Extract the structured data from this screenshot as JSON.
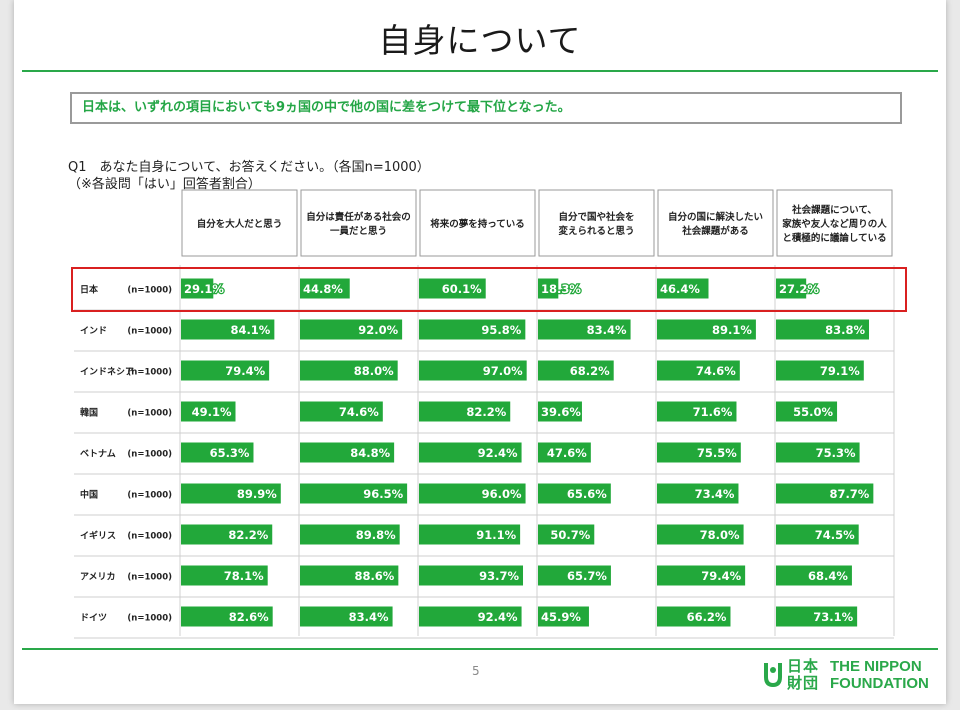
{
  "title": "自身について",
  "summary": "日本は、いずれの項目においても9ヵ国の中で他の国に差をつけて最下位となった。",
  "question": {
    "line1": "Q1　あなた自身について、お答えください。（各国n=1000）",
    "line2": "（※各設問「はい」回答者割合）"
  },
  "page_number": "5",
  "logo": {
    "jp_line1": "日本",
    "jp_line2": "財団",
    "en_line1": "THE NIPPON",
    "en_line2": "FOUNDATION"
  },
  "colors": {
    "bar": "#22a83a",
    "accent": "#2aa84a",
    "highlight_border": "#d92020",
    "bar_label": "#ffffff"
  },
  "chart_data": {
    "type": "bar",
    "orientation": "horizontal",
    "xlim": [
      0,
      100
    ],
    "value_format": "percent",
    "columns": [
      [
        "自分を大人だと思う"
      ],
      [
        "自分は責任がある社会の",
        "一員だと思う"
      ],
      [
        "将来の夢を持っている"
      ],
      [
        "自分で国や社会を",
        "変えられると思う"
      ],
      [
        "自分の国に解決したい",
        "社会課題がある"
      ],
      [
        "社会課題について、",
        "家族や友人など周りの人",
        "と積極的に議論している"
      ]
    ],
    "series": [
      {
        "name": "日本",
        "n": "(n=1000)",
        "highlight": true,
        "values": [
          29.1,
          44.8,
          60.1,
          18.3,
          46.4,
          27.2
        ]
      },
      {
        "name": "インド",
        "n": "(n=1000)",
        "values": [
          84.1,
          92.0,
          95.8,
          83.4,
          89.1,
          83.8
        ]
      },
      {
        "name": "インドネシア",
        "n": "(n=1000)",
        "values": [
          79.4,
          88.0,
          97.0,
          68.2,
          74.6,
          79.1
        ]
      },
      {
        "name": "韓国",
        "n": "(n=1000)",
        "values": [
          49.1,
          74.6,
          82.2,
          39.6,
          71.6,
          55.0
        ]
      },
      {
        "name": "ベトナム",
        "n": "(n=1000)",
        "values": [
          65.3,
          84.8,
          92.4,
          47.6,
          75.5,
          75.3
        ]
      },
      {
        "name": "中国",
        "n": "(n=1000)",
        "values": [
          89.9,
          96.5,
          96.0,
          65.6,
          73.4,
          87.7
        ]
      },
      {
        "name": "イギリス",
        "n": "(n=1000)",
        "values": [
          82.2,
          89.8,
          91.1,
          50.7,
          78.0,
          74.5
        ]
      },
      {
        "name": "アメリカ",
        "n": "(n=1000)",
        "values": [
          78.1,
          88.6,
          93.7,
          65.7,
          79.4,
          68.4
        ]
      },
      {
        "name": "ドイツ",
        "n": "(n=1000)",
        "values": [
          82.6,
          83.4,
          92.4,
          45.9,
          66.2,
          73.1
        ]
      }
    ]
  }
}
